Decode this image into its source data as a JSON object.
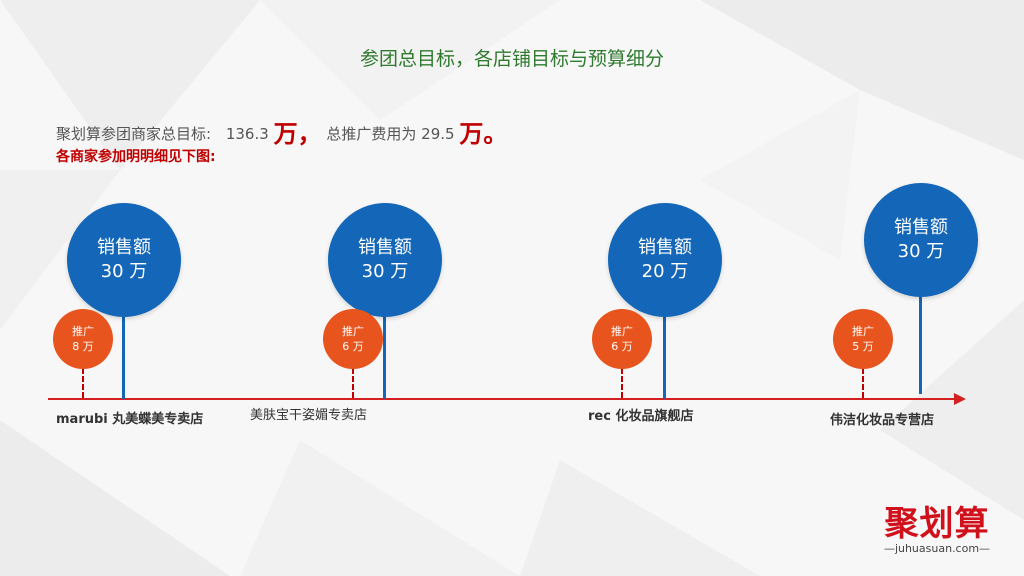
{
  "title": "参团总目标，各店铺目标与预算细分",
  "summary": {
    "prefix": "聚划算参团商家总目标:",
    "total_target": "136.3",
    "unit1": "万，",
    "promo_text": "总推广费用为",
    "promo_value": "29.5",
    "unit2": "万。"
  },
  "subtitle": "各商家参加明明细见下图:",
  "stores": [
    {
      "name": "marubi 丸美蝶美专卖店",
      "sales_label": "销售额",
      "sales_value": "30 万",
      "promo_label": "推广",
      "promo_value": "8 万"
    },
    {
      "name": "美肤宝干姿媚专卖店",
      "sales_label": "销售额",
      "sales_value": "30 万",
      "promo_label": "推广",
      "promo_value": "6 万"
    },
    {
      "name": "rec 化妆品旗舰店",
      "sales_label": "销售额",
      "sales_value": "20 万",
      "promo_label": "推广",
      "promo_value": "6 万"
    },
    {
      "name": "伟洁化妆品专营店",
      "sales_label": "销售额",
      "sales_value": "30 万",
      "promo_label": "推广",
      "promo_value": "5 万"
    }
  ],
  "logo": {
    "text": "聚划算",
    "url": "—juhuasuan.com—"
  },
  "colors": {
    "blue": "#1366b8",
    "orange": "#e8541d",
    "red": "#c00000",
    "title_green": "#2f7a2f"
  }
}
